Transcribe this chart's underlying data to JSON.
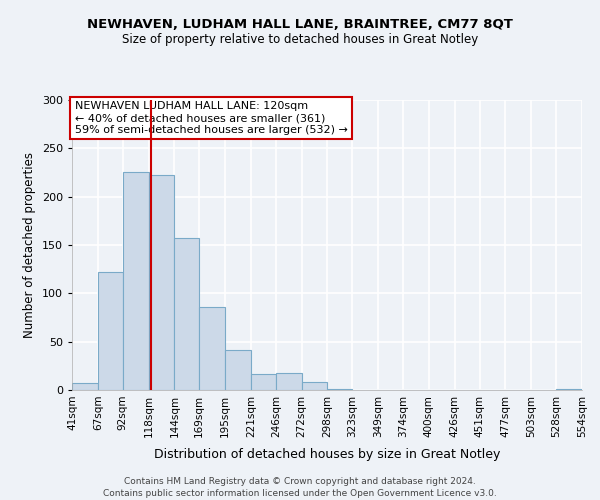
{
  "title": "NEWHAVEN, LUDHAM HALL LANE, BRAINTREE, CM77 8QT",
  "subtitle": "Size of property relative to detached houses in Great Notley",
  "xlabel": "Distribution of detached houses by size in Great Notley",
  "ylabel": "Number of detached properties",
  "bin_edges": [
    41,
    67,
    92,
    118,
    144,
    169,
    195,
    221,
    246,
    272,
    298,
    323,
    349,
    374,
    400,
    426,
    451,
    477,
    503,
    528,
    554
  ],
  "counts": [
    7,
    122,
    226,
    222,
    157,
    86,
    41,
    17,
    18,
    8,
    1,
    0,
    0,
    0,
    0,
    0,
    0,
    0,
    0,
    1
  ],
  "bar_facecolor": "#ccd9e8",
  "bar_edgecolor": "#7aaac8",
  "property_line_x": 120,
  "property_line_color": "#cc0000",
  "ylim": [
    0,
    300
  ],
  "yticks": [
    0,
    50,
    100,
    150,
    200,
    250,
    300
  ],
  "tick_labels": [
    "41sqm",
    "67sqm",
    "92sqm",
    "118sqm",
    "144sqm",
    "169sqm",
    "195sqm",
    "221sqm",
    "246sqm",
    "272sqm",
    "298sqm",
    "323sqm",
    "349sqm",
    "374sqm",
    "400sqm",
    "426sqm",
    "451sqm",
    "477sqm",
    "503sqm",
    "528sqm",
    "554sqm"
  ],
  "annotation_title": "NEWHAVEN LUDHAM HALL LANE: 120sqm",
  "annotation_line1": "← 40% of detached houses are smaller (361)",
  "annotation_line2": "59% of semi-detached houses are larger (532) →",
  "annotation_box_color": "white",
  "annotation_box_edgecolor": "#cc0000",
  "footnote1": "Contains HM Land Registry data © Crown copyright and database right 2024.",
  "footnote2": "Contains public sector information licensed under the Open Government Licence v3.0.",
  "background_color": "#eef2f7",
  "grid_color": "white",
  "plot_bg_color": "#eef2f7"
}
